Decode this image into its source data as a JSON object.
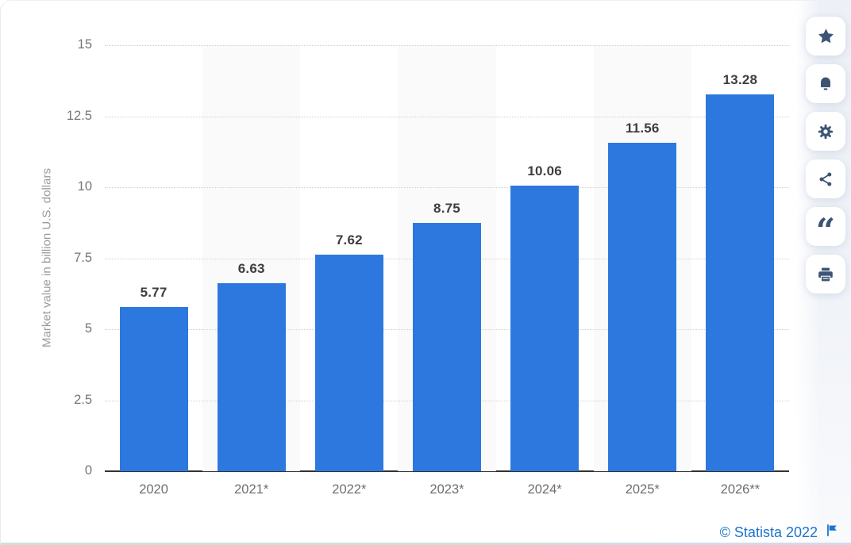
{
  "colors": {
    "bar": "#2D78DF",
    "icon": "#3D5475",
    "link": "#1B74CE",
    "stripe": "#fafafa",
    "grid": "#d0d0d0",
    "axis": "#333333"
  },
  "chart_data": {
    "type": "bar",
    "categories": [
      "2020",
      "2021*",
      "2022*",
      "2023*",
      "2024*",
      "2025*",
      "2026**"
    ],
    "values": [
      5.77,
      6.63,
      7.62,
      8.75,
      10.06,
      11.56,
      13.28
    ],
    "value_labels": [
      "5.77",
      "6.63",
      "7.62",
      "8.75",
      "10.06",
      "11.56",
      "13.28"
    ],
    "title": "",
    "xlabel": "",
    "ylabel": "Market value in billion U.S. dollars",
    "ylim": [
      0,
      15
    ],
    "yticks": [
      0,
      2.5,
      5,
      7.5,
      10,
      12.5,
      15
    ],
    "ytick_labels": [
      "0",
      "2.5",
      "5",
      "7.5",
      "10",
      "12.5",
      "15"
    ],
    "grid": "horizontal-dotted",
    "legend": false,
    "striped_category_indices": [
      1,
      3,
      5
    ]
  },
  "sidebar": {
    "buttons": [
      {
        "id": "favorite",
        "icon": "star-icon"
      },
      {
        "id": "notifications",
        "icon": "bell-icon"
      },
      {
        "id": "settings",
        "icon": "gear-icon"
      },
      {
        "id": "share",
        "icon": "share-icon"
      },
      {
        "id": "cite",
        "icon": "quote-icon"
      },
      {
        "id": "print",
        "icon": "print-icon"
      }
    ]
  },
  "footer": {
    "copyright": "© Statista 2022"
  }
}
